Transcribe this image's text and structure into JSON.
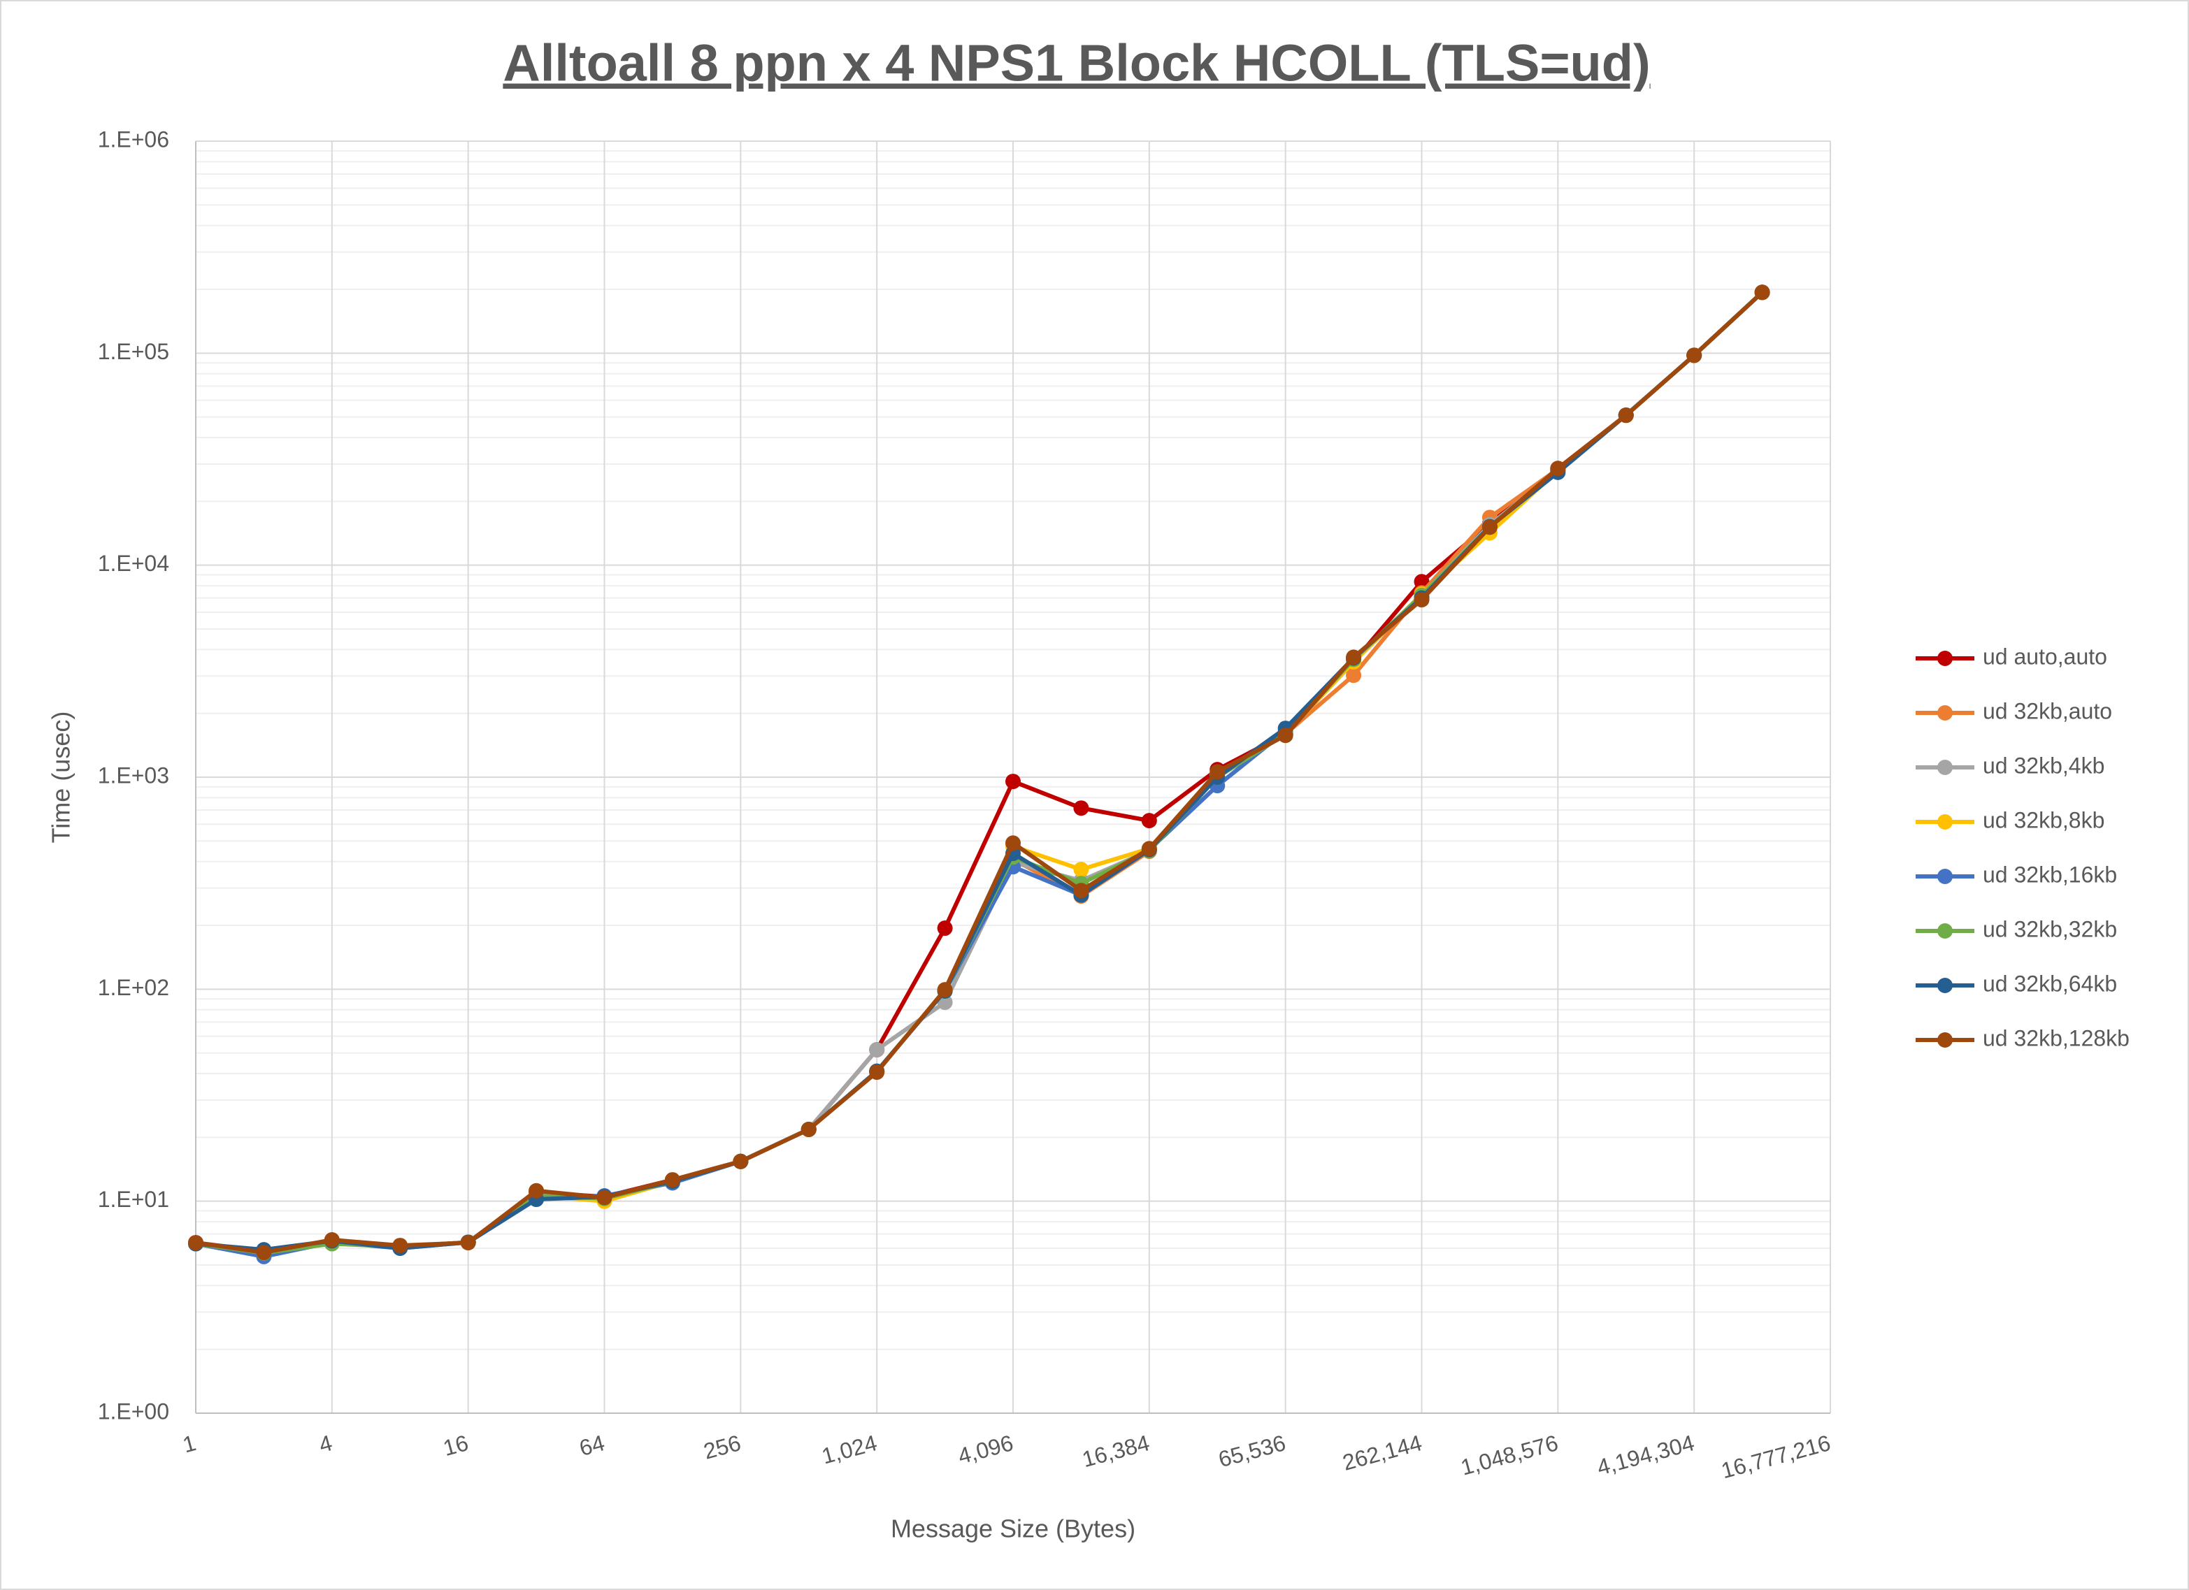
{
  "chart_data": {
    "type": "line",
    "title": "Alltoall 8 ppn x 4 NPS1 Block HCOLL (TLS=ud)",
    "x_label": "Message Size (Bytes)",
    "y_label": "Time (usec)",
    "log_x": true,
    "log_y": true,
    "grid": true,
    "minor_grid": true,
    "legend": "right",
    "x": [
      1,
      2,
      4,
      8,
      16,
      32,
      64,
      128,
      256,
      512,
      1024,
      2048,
      4096,
      8192,
      16384,
      32768,
      65536,
      131072,
      262144,
      524288,
      1048576,
      2097152,
      4194304,
      8388608
    ],
    "xlim": [
      1,
      16777216
    ],
    "xticks": [
      1,
      4,
      16,
      64,
      256,
      {
        "value": 1024,
        "label": "1,024"
      },
      {
        "value": 4096,
        "label": "4,096"
      },
      {
        "value": 16384,
        "label": "16,384"
      },
      {
        "value": 65536,
        "label": "65,536"
      },
      {
        "value": 262144,
        "label": "262,144"
      },
      {
        "value": 1048576,
        "label": "1,048,576"
      },
      {
        "value": 4194304,
        "label": "4,194,304"
      },
      {
        "value": 16777216,
        "label": "16,777,216"
      }
    ],
    "ylim": [
      1,
      1000000
    ],
    "yticks": [
      {
        "value": 1,
        "label": "1.E+00"
      },
      {
        "value": 10,
        "label": "1.E+01"
      },
      {
        "value": 100,
        "label": "1.E+02"
      },
      {
        "value": 1000,
        "label": "1.E+03"
      },
      {
        "value": 10000,
        "label": "1.E+04"
      },
      {
        "value": 100000,
        "label": "1.E+05"
      },
      {
        "value": 1000000,
        "label": "1.E+06"
      }
    ],
    "series": [
      {
        "name": "ud auto,auto",
        "color": "#c00000",
        "values": [
          6.37,
          5.8,
          6.4,
          6.1,
          6.4,
          11.0,
          10.5,
          12.6,
          15.4,
          21.8,
          51.8,
          194,
          955,
          715,
          624,
          1086,
          1600,
          3500,
          8360,
          15700,
          28600,
          51000,
          97700,
          193600
        ]
      },
      {
        "name": "ud 32kb,auto",
        "color": "#ed7d31",
        "values": [
          6.3,
          5.7,
          6.4,
          6.1,
          6.4,
          10.8,
          10.3,
          12.5,
          15.4,
          21.8,
          41,
          98,
          410,
          275,
          447,
          1040,
          1600,
          3025,
          7400,
          16800,
          28400,
          51000,
          97700,
          193600
        ]
      },
      {
        "name": "ud 32kb,4kb",
        "color": "#a5a5a5",
        "values": [
          6.3,
          5.8,
          6.4,
          6.1,
          6.4,
          10.8,
          10.3,
          12.4,
          15.4,
          21.8,
          51.8,
          86.7,
          396,
          325,
          450,
          1000,
          1600,
          3500,
          7200,
          15500,
          28000,
          51000,
          97700,
          193600
        ]
      },
      {
        "name": "ud 32kb,8kb",
        "color": "#ffc000",
        "values": [
          6.3,
          5.8,
          6.4,
          6.1,
          6.4,
          10.6,
          10.0,
          12.4,
          15.4,
          21.8,
          41,
          99,
          472,
          367,
          460,
          1020,
          1600,
          3500,
          7300,
          14200,
          28000,
          51000,
          97700,
          193600
        ]
      },
      {
        "name": "ud 32kb,16kb",
        "color": "#4472c4",
        "values": [
          6.3,
          5.48,
          6.4,
          6.0,
          6.4,
          10.4,
          10.6,
          12.2,
          15.4,
          21.8,
          41,
          98,
          378,
          278,
          455,
          912,
          1650,
          3600,
          7100,
          15200,
          28000,
          51000,
          97700,
          193600
        ]
      },
      {
        "name": "ud 32kb,32kb",
        "color": "#70ad47",
        "values": [
          6.3,
          5.7,
          6.3,
          6.1,
          6.4,
          10.6,
          10.3,
          12.4,
          15.4,
          21.8,
          41,
          98,
          420,
          315,
          450,
          1000,
          1600,
          3600,
          7200,
          15200,
          28200,
          51000,
          97700,
          193600
        ]
      },
      {
        "name": "ud 32kb,64kb",
        "color": "#255e91",
        "values": [
          6.3,
          5.9,
          6.5,
          6.0,
          6.4,
          10.2,
          10.5,
          12.4,
          15.4,
          21.8,
          41,
          98,
          437,
          278,
          455,
          1000,
          1700,
          3650,
          7000,
          15200,
          27400,
          51000,
          97700,
          193600
        ]
      },
      {
        "name": "ud 32kb,128kb",
        "color": "#9e480e",
        "values": [
          6.37,
          5.73,
          6.57,
          6.18,
          6.37,
          11.2,
          10.4,
          12.6,
          15.4,
          21.8,
          40.6,
          99.4,
          489,
          292,
          460,
          1060,
          1574,
          3680,
          6870,
          15100,
          28600,
          50900,
          97700,
          193600
        ]
      }
    ]
  }
}
